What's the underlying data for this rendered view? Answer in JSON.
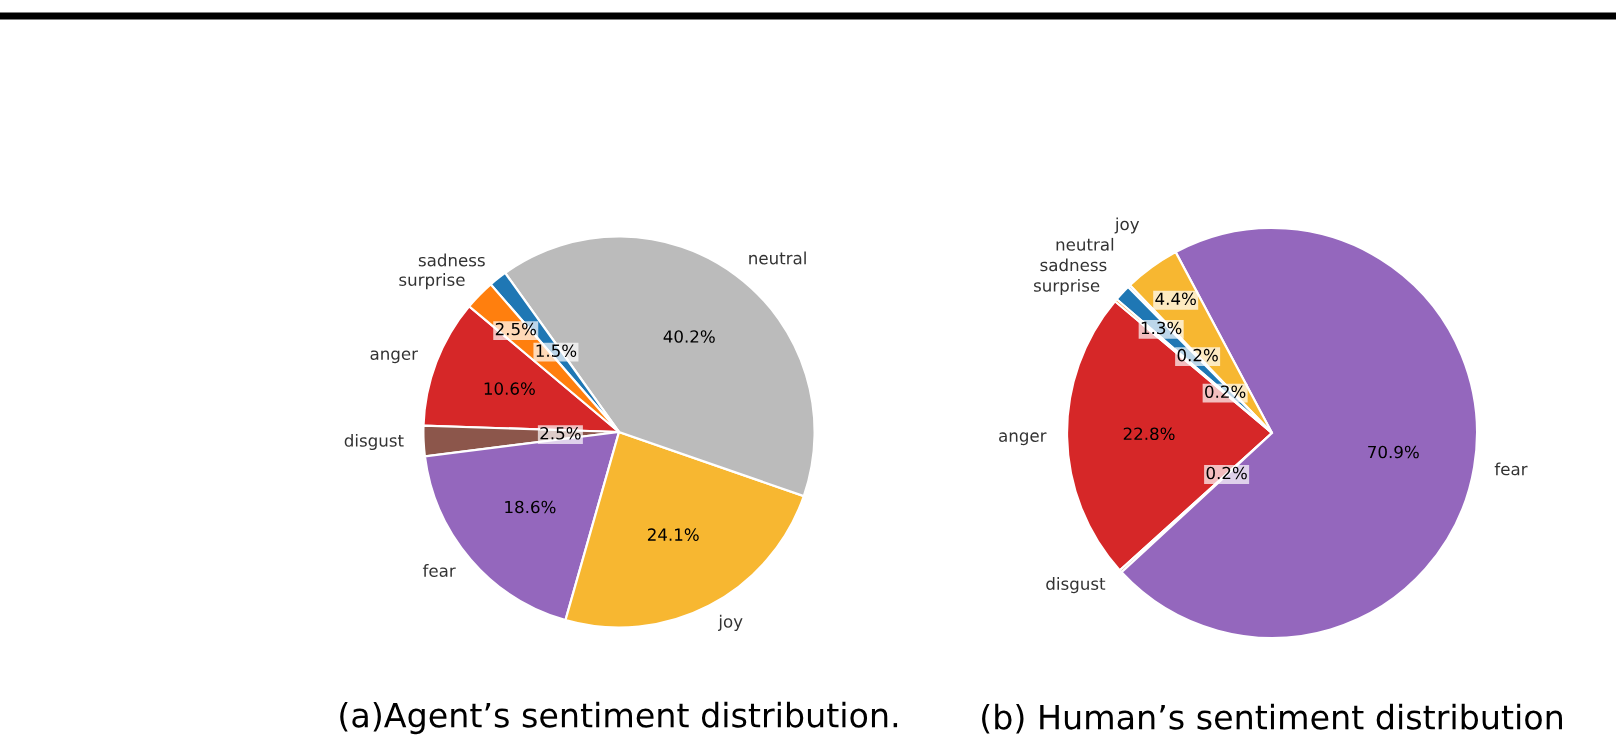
{
  "chart_data": [
    {
      "type": "pie",
      "categories": [
        "anger",
        "disgust",
        "fear",
        "joy",
        "neutral",
        "sadness",
        "surprise"
      ],
      "values": [
        10.6,
        2.5,
        18.6,
        24.1,
        40.2,
        1.5,
        2.5
      ],
      "colors": [
        "#d62728",
        "#8c564b",
        "#9467bd",
        "#f7b731",
        "#bbbbbb",
        "#1f77b4",
        "#ff7f0e"
      ],
      "data_labels": true,
      "value_labels": [
        "10.6%",
        "2.5%",
        "18.6%",
        "24.1%",
        "40.2%",
        "1.5%",
        "2.5%"
      ],
      "annotations": [
        "(a)Agent’s sentiment distribution."
      ]
    },
    {
      "type": "pie",
      "categories": [
        "anger",
        "disgust",
        "fear",
        "joy",
        "neutral",
        "sadness",
        "surprise"
      ],
      "values": [
        22.8,
        0.2,
        70.9,
        4.4,
        0.2,
        1.3,
        0.2
      ],
      "colors": [
        "#d62728",
        "#8c564b",
        "#9467bd",
        "#f7b731",
        "#bbbbbb",
        "#1f77b4",
        "#ff7f0e"
      ],
      "data_labels": true,
      "value_labels": [
        "22.8%",
        "0.2%",
        "70.9%",
        "4.4%",
        "0.2%",
        "1.3%",
        "0.2%"
      ],
      "annotations": [
        "(b) Human’s sentiment distribution"
      ]
    }
  ]
}
